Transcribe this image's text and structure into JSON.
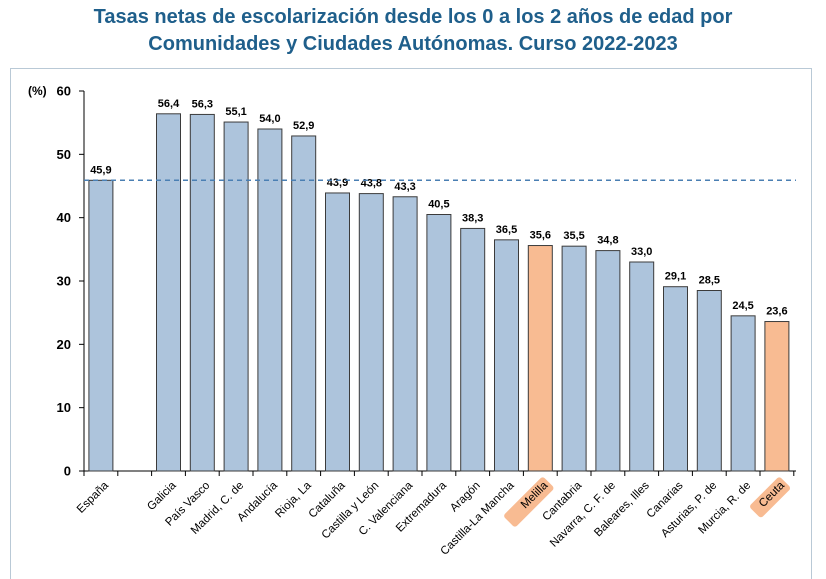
{
  "title_line1": "Tasas netas de escolarización desde los 0 a los 2 años de edad por",
  "title_line2": "Comunidades y Ciudades Autónomas. Curso 2022-2023",
  "chart_data": {
    "type": "bar",
    "title": "Tasas netas de escolarización desde los 0 a los 2 años de edad por Comunidades y Ciudades Autónomas. Curso 2022-2023",
    "ylabel": "(%)",
    "xlabel": "",
    "ylim": [
      0,
      60
    ],
    "yticks": [
      "0",
      "10",
      "20",
      "30",
      "40",
      "50",
      "60"
    ],
    "reference_line": 45.9,
    "colors": {
      "default": "#adc4dc",
      "highlight": "#f8bb92",
      "reference": "#4a7fb3"
    },
    "categories": [
      "España",
      "Galicia",
      "País Vasco",
      "Madrid, C. de",
      "Andalucía",
      "Rioja, La",
      "Cataluña",
      "Castilla y León",
      "C. Valenciana",
      "Extremadura",
      "Aragón",
      "Castilla-La Mancha",
      "Melilla",
      "Cantabria",
      "Navarra, C. F. de",
      "Baleares, Illes",
      "Canarias",
      "Asturias, P. de",
      "Murcia, R. de",
      "Ceuta"
    ],
    "values": [
      45.9,
      56.4,
      56.3,
      55.1,
      54.0,
      52.9,
      43.9,
      43.8,
      43.3,
      40.5,
      38.3,
      36.5,
      35.6,
      35.5,
      34.8,
      33.0,
      29.1,
      28.5,
      24.5,
      23.6
    ],
    "value_labels": [
      "45,9",
      "56,4",
      "56,3",
      "55,1",
      "54,0",
      "52,9",
      "43,9",
      "43,8",
      "43,3",
      "40,5",
      "38,3",
      "36,5",
      "35,6",
      "35,5",
      "34,8",
      "33,0",
      "29,1",
      "28,5",
      "24,5",
      "23,6"
    ],
    "highlighted": [
      "Melilla",
      "Ceuta"
    ]
  }
}
